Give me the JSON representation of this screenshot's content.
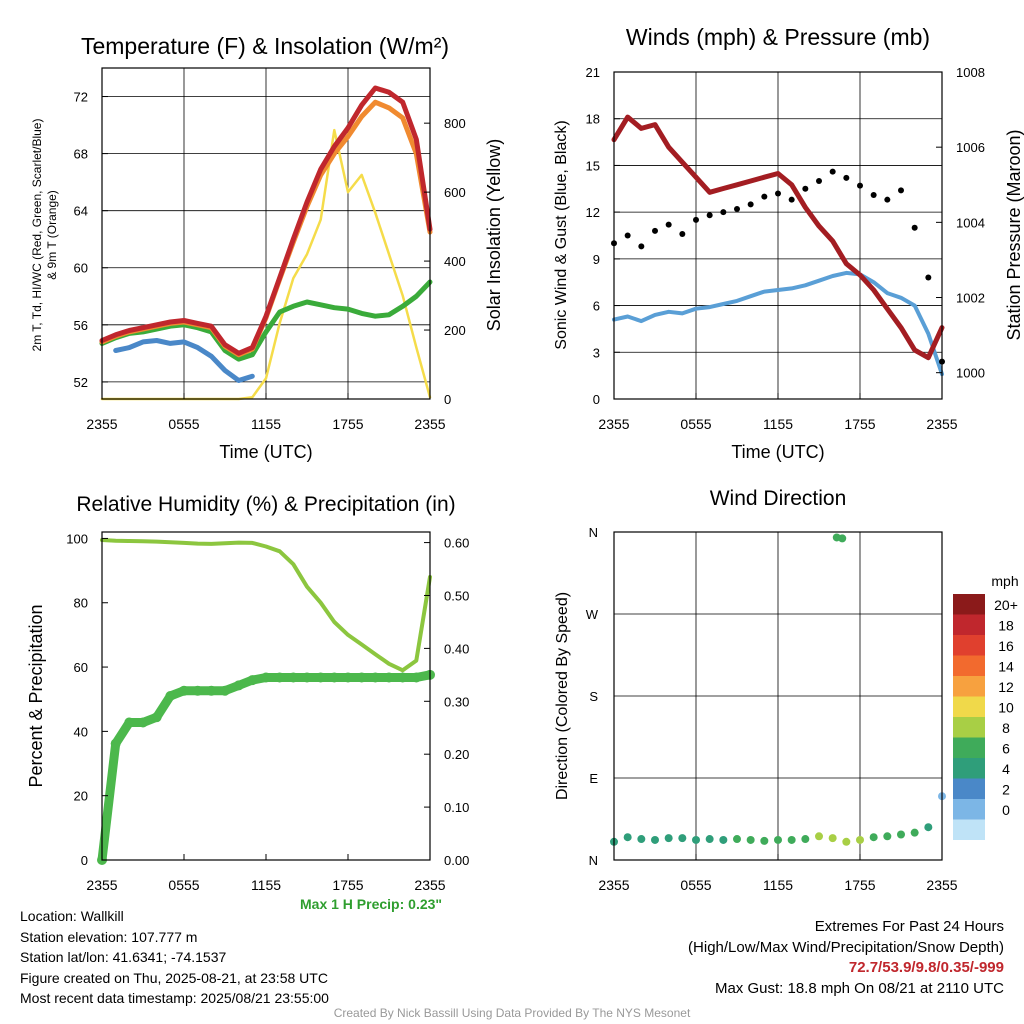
{
  "panels": {
    "temperature": {
      "title": "Temperature (F) & Insolation (W/m²)",
      "ylabel_left_lines": [
        "2m T, Td, HI/WC (Red, Green, Scarlet/Blue)",
        "& 9m T (Orange)"
      ],
      "ylabel_right": "Solar Insolation (Yellow)",
      "xlabel": "Time (UTC)"
    },
    "winds": {
      "title": "Winds (mph) & Pressure (mb)",
      "ylabel_left": "Sonic Wind & Gust (Blue, Black)",
      "ylabel_right": "Station Pressure (Maroon)",
      "xlabel": "Time (UTC)"
    },
    "humidity": {
      "title": "Relative Humidity (%) & Precipitation (in)",
      "ylabel_left": "Percent & Precipitation"
    },
    "direction": {
      "title": "Wind Direction",
      "ylabel_left": "Direction (Colored By Speed)",
      "legend_title": "mph"
    }
  },
  "precip_note": "Max 1 H Precip: 0.23\"",
  "info_left": [
    "Location: Wallkill",
    "Station elevation: 107.777 m",
    "Station lat/lon: 41.6341; -74.1537",
    "Figure created on Thu, 2025-08-21, at 23:58 UTC",
    "Most recent data timestamp: 2025/08/21 23:55:00"
  ],
  "extremes": {
    "line1": "Extremes For Past 24 Hours",
    "line2": "(High/Low/Max Wind/Precipitation/Snow Depth)",
    "values": "72.7/53.9/9.8/0.35/-999",
    "gust": "Max Gust: 18.8 mph On 08/21 at 2110 UTC"
  },
  "credit": "Created By Nick Bassill Using Data Provided By The NYS Mesonet",
  "colors": {
    "temp": "#c0272d",
    "temp9m": "#f08a30",
    "dewpoint": "#3aab3a",
    "windchill": "#4a88c8",
    "insolation": "#f5dc4a",
    "wind": "#5a9fd6",
    "gust": "#000000",
    "pressure": "#a31d22",
    "rh": "#8cc63f",
    "precip": "#4cb84c"
  },
  "chart_data": [
    {
      "type": "line",
      "name": "temperature",
      "x_ticks": [
        "2355",
        "0555",
        "1155",
        "1755",
        "2355"
      ],
      "ylim": [
        50.8,
        74
      ],
      "y_ticks": [
        52,
        56,
        60,
        64,
        68,
        72
      ],
      "y2lim": [
        0,
        960
      ],
      "y2_ticks": [
        0,
        200,
        400,
        600,
        800
      ],
      "x_hours": [
        0,
        1,
        2,
        3,
        4,
        5,
        6,
        7,
        8,
        9,
        10,
        11,
        12,
        13,
        14,
        15,
        16,
        17,
        18,
        19,
        20,
        21,
        22,
        23,
        24
      ],
      "series": [
        {
          "key": "temp",
          "axis": "left",
          "values": [
            54.9,
            55.3,
            55.6,
            55.8,
            56.0,
            56.2,
            56.3,
            56.1,
            55.9,
            54.6,
            54.0,
            54.4,
            56.6,
            59.3,
            62.0,
            64.6,
            66.9,
            68.5,
            69.8,
            71.4,
            72.6,
            72.3,
            71.6,
            69.0,
            62.7
          ]
        },
        {
          "key": "temp9m",
          "axis": "left",
          "values": [
            54.8,
            55.2,
            55.5,
            55.7,
            55.9,
            56.1,
            56.2,
            56.0,
            55.8,
            54.5,
            53.9,
            54.3,
            56.5,
            59.2,
            61.8,
            64.3,
            66.5,
            68.0,
            69.2,
            70.6,
            71.6,
            71.2,
            70.5,
            68.0,
            62.5
          ]
        },
        {
          "key": "dewpoint",
          "axis": "left",
          "values": [
            54.7,
            55.1,
            55.4,
            55.5,
            55.7,
            55.9,
            56.0,
            55.8,
            55.5,
            54.2,
            53.6,
            53.9,
            55.5,
            56.9,
            57.3,
            57.6,
            57.4,
            57.2,
            57.1,
            56.8,
            56.6,
            56.7,
            57.3,
            58.0,
            59.0
          ]
        },
        {
          "key": "windchill",
          "axis": "left",
          "values": [
            null,
            54.2,
            54.4,
            54.8,
            54.9,
            54.7,
            54.8,
            54.4,
            53.8,
            52.8,
            52.1,
            52.4,
            null,
            null,
            null,
            null,
            null,
            null,
            null,
            null,
            null,
            null,
            null,
            null,
            null
          ]
        },
        {
          "key": "insolation",
          "axis": "right",
          "values": [
            0,
            0,
            0,
            0,
            0,
            0,
            0,
            0,
            0,
            0,
            0,
            5,
            60,
            220,
            350,
            420,
            520,
            780,
            600,
            650,
            540,
            420,
            300,
            150,
            5
          ]
        }
      ]
    },
    {
      "type": "line",
      "name": "winds",
      "x_ticks": [
        "2355",
        "0555",
        "1155",
        "1755",
        "2355"
      ],
      "ylim": [
        0,
        21
      ],
      "y_ticks": [
        0,
        3,
        6,
        9,
        12,
        15,
        18,
        21
      ],
      "y2lim": [
        999.3,
        1008
      ],
      "y2_ticks": [
        1000,
        1002,
        1004,
        1006,
        1008
      ],
      "x_hours": [
        0,
        1,
        2,
        3,
        4,
        5,
        6,
        7,
        8,
        9,
        10,
        11,
        12,
        13,
        14,
        15,
        16,
        17,
        18,
        19,
        20,
        21,
        22,
        23,
        24
      ],
      "series": [
        {
          "key": "wind",
          "axis": "left",
          "values": [
            5.1,
            5.3,
            5.0,
            5.4,
            5.6,
            5.5,
            5.8,
            5.9,
            6.1,
            6.3,
            6.6,
            6.9,
            7.0,
            7.1,
            7.3,
            7.6,
            7.9,
            8.1,
            8.0,
            7.5,
            6.8,
            6.5,
            6.0,
            4.2,
            1.6
          ]
        },
        {
          "key": "gust",
          "axis": "left",
          "values": [
            10.0,
            10.5,
            9.8,
            10.8,
            11.2,
            10.6,
            11.5,
            11.8,
            12.0,
            12.2,
            12.5,
            13.0,
            13.2,
            12.8,
            13.5,
            14.0,
            14.6,
            14.2,
            13.7,
            13.1,
            12.8,
            13.4,
            11.0,
            7.8,
            2.4
          ]
        },
        {
          "key": "pressure",
          "axis": "right",
          "values": [
            1006.2,
            1006.8,
            1006.5,
            1006.6,
            1006.0,
            1005.6,
            1005.2,
            1004.8,
            1004.9,
            1005.0,
            1005.1,
            1005.2,
            1005.3,
            1005.0,
            1004.4,
            1003.9,
            1003.5,
            1002.9,
            1002.6,
            1002.2,
            1001.7,
            1001.2,
            1000.6,
            1000.4,
            1001.2
          ]
        }
      ]
    },
    {
      "type": "line",
      "name": "humidity",
      "x_ticks": [
        "2355",
        "0555",
        "1155",
        "1755",
        "2355"
      ],
      "ylim": [
        0,
        102
      ],
      "y_ticks": [
        0,
        20,
        40,
        60,
        80,
        100
      ],
      "y2lim": [
        0,
        0.62
      ],
      "y2_ticks": [
        "0.00",
        "0.10",
        "0.20",
        "0.30",
        "0.40",
        "0.50",
        "0.60"
      ],
      "x_hours": [
        0,
        1,
        2,
        3,
        4,
        5,
        6,
        7,
        8,
        9,
        10,
        11,
        12,
        13,
        14,
        15,
        16,
        17,
        18,
        19,
        20,
        21,
        22,
        23,
        24
      ],
      "series": [
        {
          "key": "rh",
          "axis": "left",
          "values": [
            99.5,
            99.3,
            99.2,
            99.1,
            99.0,
            98.8,
            98.6,
            98.4,
            98.3,
            98.5,
            98.7,
            98.6,
            97.5,
            96.0,
            92.0,
            85.0,
            80.0,
            74.0,
            70.0,
            67.0,
            64.0,
            61.0,
            59.0,
            62.0,
            88.0
          ]
        },
        {
          "key": "precip",
          "axis": "right",
          "values": [
            0.0,
            0.22,
            0.26,
            0.26,
            0.27,
            0.31,
            0.32,
            0.32,
            0.32,
            0.32,
            0.33,
            0.34,
            0.345,
            0.345,
            0.345,
            0.345,
            0.345,
            0.345,
            0.345,
            0.345,
            0.345,
            0.345,
            0.345,
            0.345,
            0.35
          ]
        }
      ]
    },
    {
      "type": "scatter",
      "name": "wind_direction",
      "x_ticks": [
        "2355",
        "0555",
        "1155",
        "1755",
        "2355"
      ],
      "y_ticks": [
        "N",
        "E",
        "S",
        "W",
        "N"
      ],
      "ylim": [
        0,
        360
      ],
      "legend": {
        "title": "mph",
        "labels": [
          "20+",
          "18",
          "16",
          "14",
          "12",
          "10",
          "8",
          "6",
          "4",
          "2",
          "0"
        ],
        "colors": [
          "#8b1a1a",
          "#c0272d",
          "#e0402e",
          "#f26a2e",
          "#f7a13f",
          "#f0d94a",
          "#a8cf45",
          "#3fab5a",
          "#2f9e7a",
          "#4a88c8",
          "#7cb6e6",
          "#bfe3f7"
        ]
      },
      "x_hours": [
        0,
        1,
        2,
        3,
        4,
        5,
        6,
        7,
        8,
        9,
        10,
        11,
        12,
        13,
        14,
        15,
        16,
        17,
        18,
        19,
        20,
        21,
        22,
        23,
        24
      ],
      "direction_deg": [
        20,
        25,
        23,
        22,
        24,
        24,
        22,
        23,
        22,
        23,
        22,
        21,
        22,
        22,
        23,
        26,
        24,
        20,
        22,
        25,
        26,
        28,
        30,
        36,
        70
      ],
      "speed": [
        5,
        6,
        5,
        6,
        6,
        6,
        6,
        6,
        6,
        7,
        7,
        7,
        7,
        8,
        8,
        9,
        9,
        9,
        9,
        8,
        8,
        8,
        7,
        5,
        2
      ],
      "extra_points": [
        {
          "x_hour": 16.3,
          "direction_deg": 354,
          "speed": 8
        },
        {
          "x_hour": 16.7,
          "direction_deg": 353,
          "speed": 7
        }
      ]
    }
  ]
}
